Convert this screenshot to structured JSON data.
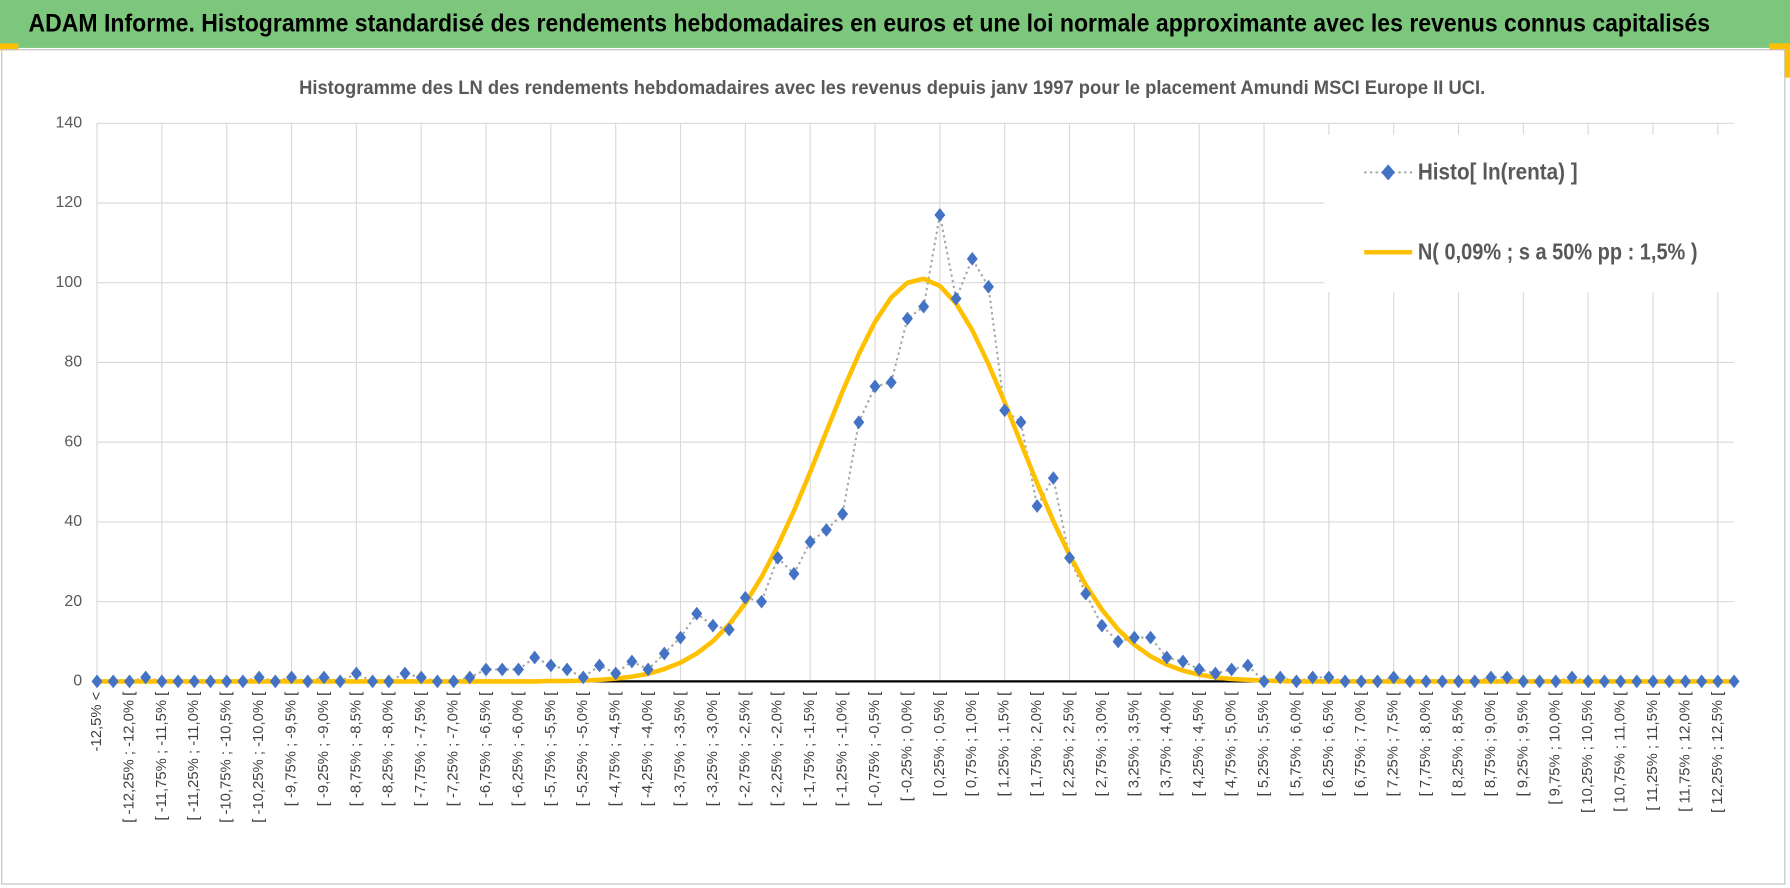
{
  "header": {
    "title": "ADAM Informe. Histogramme standardisé des rendements hebdomadaires en euros et une loi normale approximante avec les revenus connus capitalisés"
  },
  "chart_data": {
    "type": "line",
    "title": "Histogramme des LN des rendements hebdomadaires avec les revenus depuis janv 1997 pour le placement Amundi MSCI Europe II UCI.",
    "categories": [
      "-12,5% <",
      null,
      "[ -12,25% ; -12,0% [",
      null,
      "[ -11,75% ; -11,5% [",
      null,
      "[ -11,25% ; -11,0% [",
      null,
      "[ -10,75% ; -10,5% [",
      null,
      "[ -10,25% ; -10,0% [",
      null,
      "[ -9,75% ; -9,5% [",
      null,
      "[ -9,25% ; -9,0% [",
      null,
      "[ -8,75% ; -8,5% [",
      null,
      "[ -8,25% ; -8,0% [",
      null,
      "[ -7,75% ; -7,5% [",
      null,
      "[ -7,25% ; -7,0% [",
      null,
      "[ -6,75% ; -6,5% [",
      null,
      "[ -6,25% ; -6,0% [",
      null,
      "[ -5,75% ; -5,5% [",
      null,
      "[ -5,25% ; -5,0% [",
      null,
      "[ -4,75% ; -4,5% [",
      null,
      "[ -4,25% ; -4,0% [",
      null,
      "[ -3,75% ; -3,5% [",
      null,
      "[ -3,25% ; -3,0% [",
      null,
      "[ -2,75% ; -2,5% [",
      null,
      "[ -2,25% ; -2,0% [",
      null,
      "[ -1,75% ; -1,5% [",
      null,
      "[ -1,25% ; -1,0% [",
      null,
      "[ -0,75% ; -0,5% [",
      null,
      "[ -0,25% ; 0,0% [",
      null,
      "[ 0,25% ; 0,5% [",
      null,
      "[ 0,75% ; 1,0% [",
      null,
      "[ 1,25% ; 1,5% [",
      null,
      "[ 1,75% ; 2,0% [",
      null,
      "[ 2,25% ; 2,5% [",
      null,
      "[ 2,75% ; 3,0% [",
      null,
      "[ 3,25% ; 3,5% [",
      null,
      "[ 3,75% ; 4,0% [",
      null,
      "[ 4,25% ; 4,5% [",
      null,
      "[ 4,75% ; 5,0% [",
      null,
      "[ 5,25% ; 5,5% [",
      null,
      "[ 5,75% ; 6,0% [",
      null,
      "[ 6,25% ; 6,5% [",
      null,
      "[ 6,75% ; 7,0% [",
      null,
      "[ 7,25% ; 7,5% [",
      null,
      "[ 7,75% ; 8,0% [",
      null,
      "[ 8,25% ; 8,5% [",
      null,
      "[ 8,75% ; 9,0% [",
      null,
      "[ 9,25% ; 9,5% [",
      null,
      "[ 9,75% ; 10,0% [",
      null,
      "[ 10,25% ; 10,5% [",
      null,
      "[ 10,75% ; 11,0% [",
      null,
      "[ 11,25% ; 11,5% [",
      null,
      "[ 11,75% ; 12,0% [",
      null,
      "[ 12,25% ; 12,5% [",
      null
    ],
    "series": [
      {
        "name": "Histo[ ln(renta) ]",
        "color": "#4472c4",
        "line_color": "#a5a5a5",
        "values": [
          0,
          0,
          0,
          1,
          0,
          0,
          0,
          0,
          0,
          0,
          1,
          0,
          1,
          0,
          1,
          0,
          2,
          0,
          0,
          2,
          1,
          0,
          0,
          1,
          3,
          3,
          3,
          6,
          4,
          3,
          1,
          4,
          2,
          5,
          3,
          7,
          11,
          17,
          14,
          13,
          21,
          20,
          31,
          27,
          35,
          38,
          42,
          65,
          74,
          75,
          91,
          94,
          117,
          96,
          106,
          99,
          68,
          65,
          44,
          51,
          31,
          22,
          14,
          10,
          11,
          11,
          6,
          5,
          3,
          2,
          3,
          4,
          0,
          1,
          0,
          1,
          1,
          0,
          0,
          0,
          1,
          0,
          0,
          0,
          0,
          0,
          1,
          1,
          0,
          0,
          0,
          1,
          0,
          0,
          0,
          0,
          0,
          0,
          0,
          0,
          0,
          0
        ]
      },
      {
        "name": "N( 0,09% ; s a 50% pp : 1,5% )",
        "color": "#ffc000",
        "values": [
          0,
          0,
          0,
          0,
          0,
          0,
          0,
          0,
          0,
          0,
          0,
          0,
          0,
          0,
          0,
          0,
          0,
          0,
          0,
          0,
          0,
          0,
          0,
          0,
          0,
          0,
          0,
          0,
          0.1,
          0.1,
          0.2,
          0.4,
          0.7,
          1.2,
          1.9,
          3.1,
          4.7,
          7.0,
          10.1,
          14.3,
          19.6,
          26.2,
          34.0,
          42.8,
          52.5,
          62.7,
          72.8,
          82.1,
          90.2,
          96.3,
          100.0,
          101.0,
          99.2,
          94.8,
          88.1,
          79.6,
          70.0,
          59.8,
          49.7,
          40.2,
          31.7,
          24.2,
          18.0,
          13.0,
          9.2,
          6.3,
          4.2,
          2.7,
          1.7,
          1.0,
          0.6,
          0.4,
          0.2,
          0.1,
          0,
          0,
          0,
          0,
          0,
          0,
          0,
          0,
          0,
          0,
          0,
          0,
          0,
          0,
          0,
          0,
          0,
          0,
          0,
          0,
          0,
          0,
          0,
          0,
          0,
          0,
          0,
          0
        ]
      }
    ],
    "ylim": [
      0,
      140
    ],
    "yticks": [
      0,
      20,
      40,
      60,
      80,
      100,
      120,
      140
    ],
    "grid": true,
    "legend": "upper right"
  }
}
